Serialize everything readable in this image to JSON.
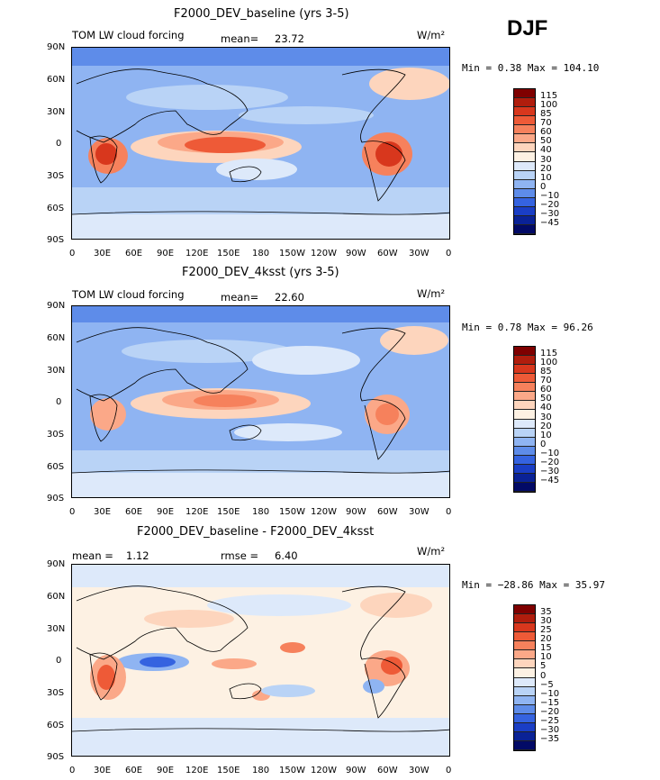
{
  "season": "DJF",
  "panels": [
    {
      "title": "F2000_DEV_baseline (yrs 3-5)",
      "left_label": "TOM LW cloud forcing",
      "stat_label": "mean=",
      "stat_value": "23.72",
      "units": "W/m²",
      "minmax": "Min =   0.38 Max = 104.10",
      "cbar_labels": [
        "115",
        "100",
        "85",
        "70",
        "60",
        "50",
        "40",
        "30",
        "20",
        "10",
        "0",
        "−10",
        "−20",
        "−30",
        "−45"
      ],
      "cbar_colors": [
        "#7f0000",
        "#b01d0d",
        "#d8371d",
        "#ee5a37",
        "#f6815c",
        "#fba888",
        "#fdd5bd",
        "#fdf1e3",
        "#dde9fa",
        "#b9d3f6",
        "#8fb4f2",
        "#5e8ce9",
        "#3563e0",
        "#1a3ec5",
        "#0a2296",
        "#020a66"
      ]
    },
    {
      "title": "F2000_DEV_4ksst (yrs 3-5)",
      "left_label": "TOM LW cloud forcing",
      "stat_label": "mean=",
      "stat_value": "22.60",
      "units": "W/m²",
      "minmax": "Min =   0.78 Max =  96.26",
      "cbar_labels": [
        "115",
        "100",
        "85",
        "70",
        "60",
        "50",
        "40",
        "30",
        "20",
        "10",
        "0",
        "−10",
        "−20",
        "−30",
        "−45"
      ],
      "cbar_colors": [
        "#7f0000",
        "#b01d0d",
        "#d8371d",
        "#ee5a37",
        "#f6815c",
        "#fba888",
        "#fdd5bd",
        "#fdf1e3",
        "#dde9fa",
        "#b9d3f6",
        "#8fb4f2",
        "#5e8ce9",
        "#3563e0",
        "#1a3ec5",
        "#0a2296",
        "#020a66"
      ]
    },
    {
      "title": "F2000_DEV_baseline - F2000_DEV_4ksst",
      "left_label": "mean =",
      "left_value": "1.12",
      "stat_label": "rmse =",
      "stat_value": "6.40",
      "units": "W/m²",
      "minmax": "Min = −28.86 Max =  35.97",
      "cbar_labels": [
        "35",
        "30",
        "25",
        "20",
        "15",
        "10",
        "5",
        "0",
        "−5",
        "−10",
        "−15",
        "−20",
        "−25",
        "−30",
        "−35"
      ],
      "cbar_colors": [
        "#7f0000",
        "#b01d0d",
        "#d8371d",
        "#ee5a37",
        "#f6815c",
        "#fba888",
        "#fdd5bd",
        "#fdf1e3",
        "#dde9fa",
        "#b9d3f6",
        "#8fb4f2",
        "#5e8ce9",
        "#3563e0",
        "#1a3ec5",
        "#0a2296",
        "#020a66"
      ]
    }
  ],
  "lat_ticks": [
    "90N",
    "60N",
    "30N",
    "0",
    "30S",
    "60S",
    "90S"
  ],
  "lon_ticks": [
    "0",
    "30E",
    "60E",
    "90E",
    "120E",
    "150E",
    "180",
    "150W",
    "120W",
    "90W",
    "60W",
    "30W",
    "0"
  ]
}
